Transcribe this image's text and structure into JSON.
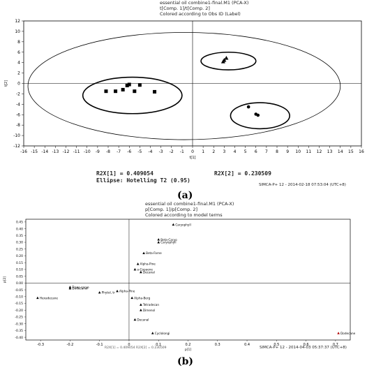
{
  "panel_a": {
    "header": [
      "essential oil combine1-final.M1 (PCA-X)",
      "t[Comp. 1]/t[Comp. 2]",
      "Colored according to Obs ID (Label)"
    ],
    "stat_r2x1": "R2X[1] = 0.409054",
    "stat_r2x2": "R2X[2] = 0.230509",
    "stat_ellipse": "Ellipse: Hotelling T2 (0.95)",
    "footer": "SIMCA-P+ 12 - 2014-02-18 07:53:04 (UTC+8)",
    "caption": "(a)"
  },
  "panel_b": {
    "header": [
      "essential oil combine1-final.M1 (PCA-X)",
      "p[Comp. 1]/p[Comp. 2]",
      "Colored according to model terms"
    ],
    "footer_left": "R2X[1] = 0.409054  R2X[2] = 0.230509",
    "footer": "SIMCA-P+ 12 - 2014-04-03 05:37:37 (UTC+8)",
    "caption": "(b)"
  },
  "chart_data": [
    {
      "type": "scatter",
      "title": "essential oil combine1-final.M1 (PCA-X)",
      "xlabel": "t[1]",
      "ylabel": "t[2]",
      "xlim": [
        -16,
        16
      ],
      "ylim": [
        -12,
        12
      ],
      "xticks": [
        -16,
        -15,
        -14,
        -13,
        -12,
        -11,
        -10,
        -9,
        -8,
        -7,
        -6,
        -5,
        -4,
        -3,
        -2,
        -1,
        0,
        1,
        2,
        3,
        4,
        5,
        6,
        7,
        8,
        9,
        10,
        11,
        12,
        13,
        14,
        15,
        16
      ],
      "yticks": [
        -12,
        -10,
        -8,
        -6,
        -4,
        -2,
        0,
        2,
        4,
        6,
        8,
        10,
        12
      ],
      "grid": false,
      "series": [
        {
          "marker": "square",
          "x": [
            -8.2,
            -7.3,
            -6.6,
            -6.0,
            -5.5,
            -5.0,
            -3.6,
            -6.2
          ],
          "y": [
            -1.5,
            -1.5,
            -1.2,
            -0.2,
            -1.5,
            -0.3,
            -1.6,
            -0.4
          ]
        },
        {
          "marker": "triangle",
          "x": [
            3.2,
            3.0,
            2.9
          ],
          "y": [
            4.9,
            4.5,
            4.2
          ]
        },
        {
          "marker": "circle",
          "x": [
            5.3,
            6.0,
            6.2
          ],
          "y": [
            -4.5,
            -5.9,
            -6.1
          ]
        }
      ],
      "ellipses": [
        {
          "cx": -0.8,
          "cy": -0.5,
          "rx": 14.8,
          "ry": 10.3
        },
        {
          "cx": 3.4,
          "cy": 4.3,
          "rx": 2.6,
          "ry": 1.7
        },
        {
          "cx": 6.4,
          "cy": -6.2,
          "rx": 2.8,
          "ry": 2.5
        },
        {
          "cx": -5.7,
          "cy": -2.3,
          "rx": 4.7,
          "ry": 3.5
        }
      ]
    },
    {
      "type": "scatter",
      "title": "essential oil combine1-final.M1 (PCA-X)",
      "xlabel": "p[1]",
      "ylabel": "p[2]",
      "xlim": [
        -0.35,
        0.75
      ],
      "ylim": [
        -0.42,
        0.47
      ],
      "xticks": [
        -0.3,
        -0.2,
        -0.1,
        0,
        0.1,
        0.2,
        0.3,
        0.4,
        0.5,
        0.6,
        0.7
      ],
      "yticks": [
        -0.4,
        -0.35,
        -0.3,
        -0.25,
        -0.2,
        -0.15,
        -0.1,
        -0.05,
        0,
        0.05,
        0.1,
        0.15,
        0.2,
        0.25,
        0.3,
        0.35,
        0.4,
        0.45
      ],
      "grid": false,
      "points": [
        {
          "label": "Caryophyll",
          "x": 0.15,
          "y": 0.43
        },
        {
          "label": "Beta-Caryo",
          "x": 0.1,
          "y": 0.32
        },
        {
          "label": "Caryophyll",
          "x": 0.1,
          "y": 0.3
        },
        {
          "label": "Beta-Farne",
          "x": 0.05,
          "y": 0.22
        },
        {
          "label": "Alpha-Pine",
          "x": 0.03,
          "y": 0.14
        },
        {
          "label": "a-Copaene",
          "x": 0.02,
          "y": 0.1
        },
        {
          "label": "Decanal",
          "x": 0.04,
          "y": 0.08
        },
        {
          "label": "Trans-caryo",
          "x": -0.2,
          "y": -0.03
        },
        {
          "label": "Dodecanol",
          "x": -0.2,
          "y": -0.04
        },
        {
          "label": "Hexadecane",
          "x": -0.31,
          "y": -0.11
        },
        {
          "label": "Phytol, tr",
          "x": -0.1,
          "y": -0.07
        },
        {
          "label": "Alpha-Pine",
          "x": -0.04,
          "y": -0.06
        },
        {
          "label": "Alpha-Berg",
          "x": 0.01,
          "y": -0.11
        },
        {
          "label": "Tetradecan",
          "x": 0.04,
          "y": -0.16
        },
        {
          "label": "Dimenol",
          "x": 0.04,
          "y": -0.2
        },
        {
          "label": "Decanal",
          "x": 0.02,
          "y": -0.27
        },
        {
          "label": "Cyclolongi",
          "x": 0.08,
          "y": -0.37
        },
        {
          "label": "Dodecane",
          "x": 0.71,
          "y": -0.37
        }
      ]
    }
  ]
}
